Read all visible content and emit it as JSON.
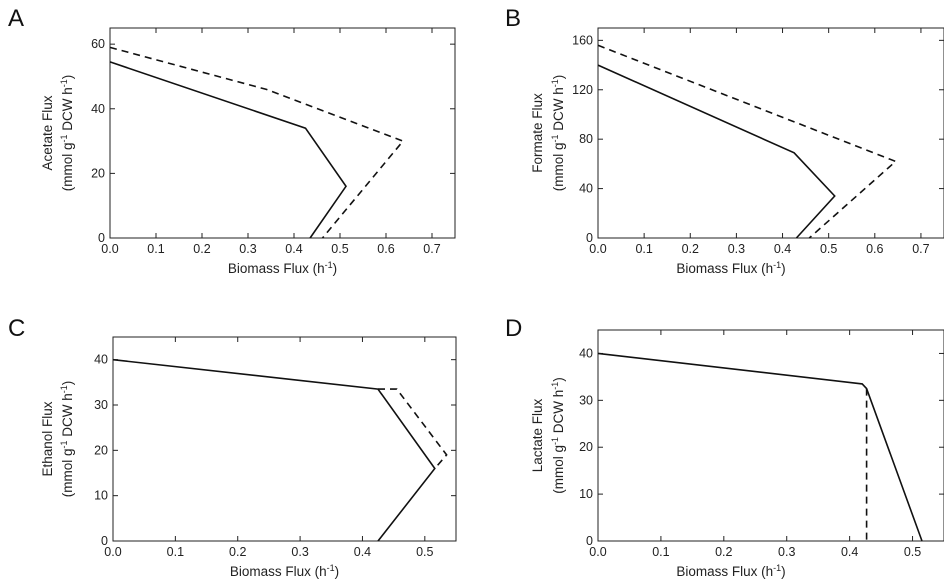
{
  "chart_data": [
    {
      "panel": "A",
      "type": "line",
      "xlabel": "Biomass Flux (h-1)",
      "ylabel_line1": "Acetate Flux",
      "ylabel_line2": "(mmol g-1 DCW h-1)",
      "xlim": [
        0.0,
        0.75
      ],
      "ylim": [
        0,
        65
      ],
      "xticks": [
        "0.0",
        "0.1",
        "0.2",
        "0.3",
        "0.4",
        "0.5",
        "0.6",
        "0.7"
      ],
      "yticks": [
        "0",
        "20",
        "40",
        "60"
      ],
      "series": [
        {
          "style": "solid",
          "points": [
            [
              0.0,
              54.5
            ],
            [
              0.425,
              34
            ],
            [
              0.513,
              16
            ],
            [
              0.435,
              0
            ]
          ]
        },
        {
          "style": "dashed",
          "points": [
            [
              0.0,
              59
            ],
            [
              0.34,
              46
            ],
            [
              0.637,
              30
            ],
            [
              0.462,
              0
            ]
          ]
        }
      ]
    },
    {
      "panel": "B",
      "type": "line",
      "xlabel": "Biomass Flux (h-1)",
      "ylabel_line1": "Formate Flux",
      "ylabel_line2": "(mmol g-1 DCW h-1)",
      "xlim": [
        0.0,
        0.75
      ],
      "ylim": [
        0,
        170
      ],
      "xticks": [
        "0.0",
        "0.1",
        "0.2",
        "0.3",
        "0.4",
        "0.5",
        "0.6",
        "0.7"
      ],
      "yticks": [
        "0",
        "40",
        "80",
        "120",
        "160"
      ],
      "series": [
        {
          "style": "solid",
          "points": [
            [
              0.0,
              140
            ],
            [
              0.425,
              69
            ],
            [
              0.513,
              34
            ],
            [
              0.43,
              0
            ]
          ]
        },
        {
          "style": "dashed",
          "points": [
            [
              0.0,
              156
            ],
            [
              0.645,
              62
            ],
            [
              0.458,
              0
            ]
          ]
        }
      ]
    },
    {
      "panel": "C",
      "type": "line",
      "xlabel": "Biomass Flux (h-1)",
      "ylabel_line1": "Ethanol Flux",
      "ylabel_line2": "(mmol g-1 DCW h-1)",
      "xlim": [
        0.0,
        0.55
      ],
      "ylim": [
        0,
        45
      ],
      "xticks": [
        "0.0",
        "0.1",
        "0.2",
        "0.3",
        "0.4",
        "0.5"
      ],
      "yticks": [
        "0",
        "10",
        "20",
        "30",
        "40"
      ],
      "series": [
        {
          "style": "solid",
          "points": [
            [
              0.0,
              40
            ],
            [
              0.425,
              33.5
            ],
            [
              0.516,
              16
            ],
            [
              0.425,
              0
            ]
          ]
        },
        {
          "style": "dashed",
          "points": [
            [
              0.425,
              33.5
            ],
            [
              0.455,
              33.5
            ],
            [
              0.535,
              19
            ],
            [
              0.516,
              16
            ]
          ]
        }
      ]
    },
    {
      "panel": "D",
      "type": "line",
      "xlabel": "Biomass Flux (h-1)",
      "ylabel_line1": "Lactate Flux",
      "ylabel_line2": "(mmol g-1 DCW h-1)",
      "xlim": [
        0.0,
        0.55
      ],
      "ylim": [
        0,
        45
      ],
      "xticks": [
        "0.0",
        "0.1",
        "0.2",
        "0.3",
        "0.4",
        "0.5"
      ],
      "yticks": [
        "0",
        "10",
        "20",
        "30",
        "40"
      ],
      "series": [
        {
          "style": "solid",
          "points": [
            [
              0.0,
              40
            ],
            [
              0.42,
              33.5
            ],
            [
              0.427,
              32.5
            ],
            [
              0.515,
              0
            ]
          ]
        },
        {
          "style": "dashed",
          "points": [
            [
              0.427,
              32.5
            ],
            [
              0.427,
              0
            ]
          ]
        }
      ]
    }
  ]
}
